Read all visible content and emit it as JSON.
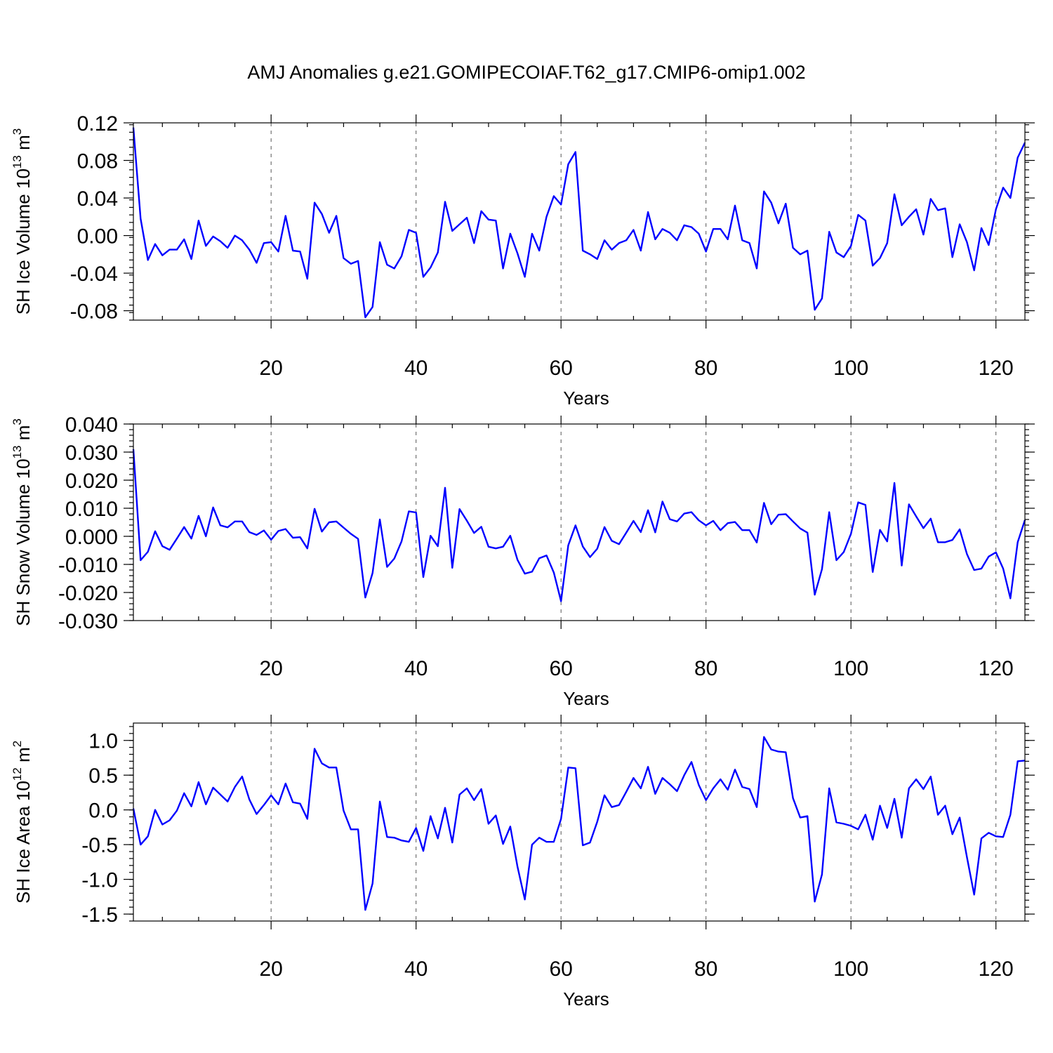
{
  "title": "AMJ Anomalies g.e21.GOMIPECOIAF.T62_g17.CMIP6-omip1.002",
  "line_color": "#0000ff",
  "chart_data": [
    {
      "type": "line",
      "ylabel": "SH Ice Volume 10",
      "ylabel_exp": "13",
      "ylabel_unit": " m",
      "ylabel_unit_exp": "3",
      "xlabel": "Years",
      "xlim": [
        1,
        124
      ],
      "ylim": [
        -0.09,
        0.12
      ],
      "xticks": [
        20,
        40,
        60,
        80,
        100,
        120
      ],
      "xtick_labels": [
        "20",
        "40",
        "60",
        "80",
        "100",
        "120"
      ],
      "yticks": [
        -0.08,
        -0.04,
        0.0,
        0.04,
        0.08,
        0.12
      ],
      "ytick_labels": [
        "-0.08",
        "-0.04",
        "0.00",
        "0.04",
        "0.08",
        "0.12"
      ],
      "grid": "vertical dashed at major x ticks",
      "series": [
        {
          "values": [
            0.115,
            0.018,
            -0.026,
            -0.009,
            -0.021,
            -0.015,
            -0.015,
            -0.004,
            -0.025,
            0.016,
            -0.011,
            -0.001,
            -0.006,
            -0.013,
            0.0,
            -0.005,
            -0.015,
            -0.029,
            -0.008,
            -0.007,
            -0.017,
            0.021,
            -0.016,
            -0.017,
            -0.046,
            0.035,
            0.023,
            0.003,
            0.021,
            -0.024,
            -0.03,
            -0.027,
            -0.087,
            -0.076,
            -0.007,
            -0.031,
            -0.035,
            -0.022,
            0.006,
            0.003,
            -0.044,
            -0.034,
            -0.018,
            0.036,
            0.005,
            0.012,
            0.019,
            -0.008,
            0.026,
            0.017,
            0.016,
            -0.035,
            0.002,
            -0.019,
            -0.044,
            0.002,
            -0.016,
            0.02,
            0.042,
            0.033,
            0.076,
            0.089,
            -0.016,
            -0.02,
            -0.025,
            -0.005,
            -0.015,
            -0.008,
            -0.005,
            0.006,
            -0.016,
            0.025,
            -0.004,
            0.007,
            0.003,
            -0.005,
            0.011,
            0.009,
            0.002,
            -0.017,
            0.007,
            0.007,
            -0.004,
            0.032,
            -0.005,
            -0.008,
            -0.035,
            0.047,
            0.035,
            0.013,
            0.034,
            -0.013,
            -0.02,
            -0.016,
            -0.079,
            -0.067,
            0.004,
            -0.018,
            -0.023,
            -0.011,
            0.022,
            0.016,
            -0.032,
            -0.024,
            -0.008,
            0.044,
            0.011,
            0.02,
            0.028,
            0.001,
            0.039,
            0.027,
            0.029,
            -0.023,
            0.012,
            -0.007,
            -0.037,
            0.008,
            -0.01,
            0.028,
            0.051,
            0.04,
            0.083,
            0.099
          ]
        }
      ]
    },
    {
      "type": "line",
      "ylabel": "SH Snow Volume 10",
      "ylabel_exp": "13",
      "ylabel_unit": " m",
      "ylabel_unit_exp": "3",
      "xlabel": "Years",
      "xlim": [
        1,
        124
      ],
      "ylim": [
        -0.03,
        0.04
      ],
      "xticks": [
        20,
        40,
        60,
        80,
        100,
        120
      ],
      "xtick_labels": [
        "20",
        "40",
        "60",
        "80",
        "100",
        "120"
      ],
      "yticks": [
        -0.03,
        -0.02,
        -0.01,
        0.0,
        0.01,
        0.02,
        0.03,
        0.04
      ],
      "ytick_labels": [
        "-0.030",
        "-0.020",
        "-0.010",
        "0.000",
        "0.010",
        "0.020",
        "0.030",
        "0.040"
      ],
      "grid": "vertical dashed at major x ticks",
      "series": [
        {
          "values": [
            0.031,
            -0.0085,
            -0.0055,
            0.0018,
            -0.0035,
            -0.0048,
            -0.0008,
            0.0033,
            -0.0008,
            0.0073,
            0.0,
            0.0103,
            0.0039,
            0.0032,
            0.0053,
            0.0053,
            0.0015,
            0.0005,
            0.0021,
            -0.0012,
            0.0019,
            0.0026,
            -0.0005,
            -0.0003,
            -0.0043,
            0.0098,
            0.0017,
            0.005,
            0.0053,
            0.0031,
            0.0009,
            -0.0009,
            -0.0218,
            -0.0131,
            0.006,
            -0.0109,
            -0.0079,
            -0.0018,
            0.0089,
            0.0085,
            -0.0145,
            0.0002,
            -0.0035,
            0.0173,
            -0.0112,
            0.0097,
            0.0056,
            0.0012,
            0.0034,
            -0.0037,
            -0.0043,
            -0.0037,
            0.0002,
            -0.0084,
            -0.0133,
            -0.0126,
            -0.0078,
            -0.0068,
            -0.0129,
            -0.0231,
            -0.0032,
            0.0039,
            -0.0036,
            -0.0074,
            -0.0044,
            0.0033,
            -0.0016,
            -0.0028,
            0.0013,
            0.0055,
            0.0015,
            0.0093,
            0.0014,
            0.0124,
            0.0061,
            0.0053,
            0.0081,
            0.0086,
            0.0057,
            0.0039,
            0.0055,
            0.0022,
            0.0047,
            0.0051,
            0.0022,
            0.0022,
            -0.0022,
            0.0119,
            0.0043,
            0.0077,
            0.0079,
            0.0053,
            0.0028,
            0.0013,
            -0.0208,
            -0.0117,
            0.0086,
            -0.0085,
            -0.0056,
            0.0009,
            0.0121,
            0.0112,
            -0.0127,
            0.0023,
            -0.0018,
            0.019,
            -0.0104,
            0.0114,
            0.0071,
            0.0029,
            0.0063,
            -0.0021,
            -0.0021,
            -0.0013,
            0.0025,
            -0.0063,
            -0.012,
            -0.0115,
            -0.0072,
            -0.0057,
            -0.0115,
            -0.0221,
            -0.0021,
            0.0058
          ]
        }
      ]
    },
    {
      "type": "line",
      "ylabel": "SH Ice Area 10",
      "ylabel_exp": "12",
      "ylabel_unit": " m",
      "ylabel_unit_exp": "2",
      "xlabel": "Years",
      "xlim": [
        1,
        124
      ],
      "ylim": [
        -1.6,
        1.25
      ],
      "xticks": [
        20,
        40,
        60,
        80,
        100,
        120
      ],
      "xtick_labels": [
        "20",
        "40",
        "60",
        "80",
        "100",
        "120"
      ],
      "yticks": [
        -1.5,
        -1.0,
        -0.5,
        0.0,
        0.5,
        1.0
      ],
      "ytick_labels": [
        "-1.5",
        "-1.0",
        "-0.5",
        "0.0",
        "0.5",
        "1.0"
      ],
      "grid": "vertical dashed at major x ticks",
      "series": [
        {
          "values": [
            0.02,
            -0.5,
            -0.38,
            0.0,
            -0.21,
            -0.15,
            -0.01,
            0.24,
            0.05,
            0.4,
            0.08,
            0.32,
            0.22,
            0.12,
            0.33,
            0.48,
            0.15,
            -0.06,
            0.07,
            0.21,
            0.08,
            0.38,
            0.11,
            0.09,
            -0.13,
            0.88,
            0.67,
            0.61,
            0.61,
            -0.01,
            -0.28,
            -0.28,
            -1.44,
            -1.06,
            0.12,
            -0.39,
            -0.4,
            -0.44,
            -0.46,
            -0.26,
            -0.59,
            -0.09,
            -0.41,
            0.03,
            -0.47,
            0.22,
            0.31,
            0.14,
            0.3,
            -0.2,
            -0.08,
            -0.49,
            -0.24,
            -0.82,
            -1.29,
            -0.5,
            -0.4,
            -0.46,
            -0.46,
            -0.13,
            0.61,
            0.6,
            -0.51,
            -0.47,
            -0.17,
            0.21,
            0.04,
            0.07,
            0.26,
            0.46,
            0.31,
            0.62,
            0.23,
            0.46,
            0.37,
            0.27,
            0.5,
            0.69,
            0.36,
            0.14,
            0.31,
            0.44,
            0.29,
            0.58,
            0.33,
            0.3,
            0.04,
            1.05,
            0.87,
            0.84,
            0.83,
            0.17,
            -0.11,
            -0.09,
            -1.32,
            -0.93,
            0.31,
            -0.18,
            -0.2,
            -0.23,
            -0.28,
            -0.07,
            -0.43,
            0.06,
            -0.26,
            0.16,
            -0.4,
            0.31,
            0.44,
            0.3,
            0.48,
            -0.07,
            0.06,
            -0.35,
            -0.11,
            -0.68,
            -1.22,
            -0.41,
            -0.33,
            -0.38,
            -0.39,
            -0.07,
            0.7,
            0.71
          ]
        }
      ]
    }
  ]
}
